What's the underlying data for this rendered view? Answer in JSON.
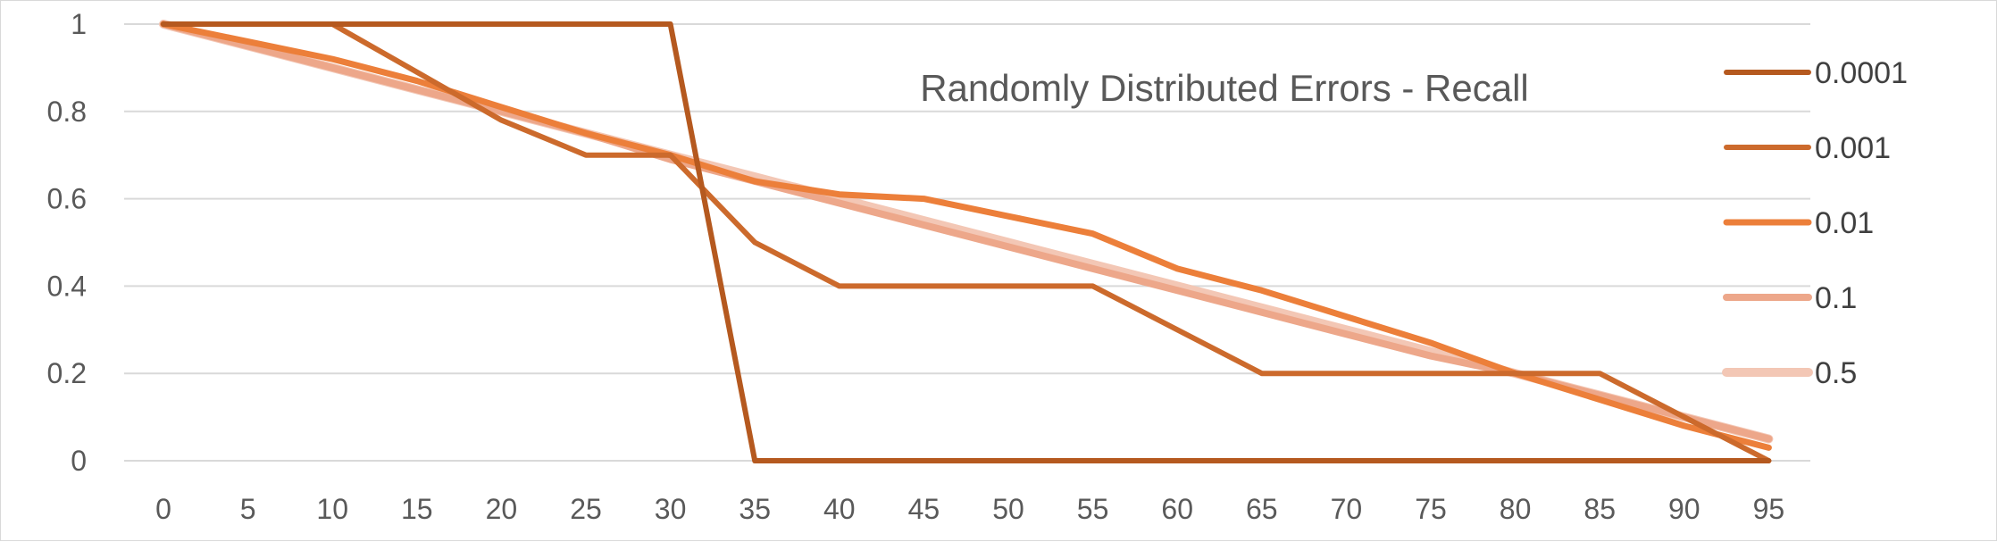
{
  "chart_data": {
    "type": "line",
    "title": "Randomly Distributed Errors - Recall",
    "xlabel": "",
    "ylabel": "",
    "categories": [
      "0",
      "5",
      "10",
      "15",
      "20",
      "25",
      "30",
      "35",
      "40",
      "45",
      "50",
      "55",
      "60",
      "65",
      "70",
      "75",
      "80",
      "85",
      "90",
      "95"
    ],
    "yticks": [
      "0",
      "0.2",
      "0.4",
      "0.6",
      "0.8",
      "1"
    ],
    "ylim": [
      0,
      1
    ],
    "grid": true,
    "legend_position": "right",
    "series": [
      {
        "name": "0.0001",
        "color": "#b5591f",
        "values": [
          1,
          1,
          1,
          1,
          1,
          1,
          1,
          0,
          0,
          0,
          0,
          0,
          0,
          0,
          0,
          0,
          0,
          0,
          0,
          0
        ]
      },
      {
        "name": "0.001",
        "color": "#cc6a2c",
        "values": [
          1,
          1,
          1,
          0.89,
          0.78,
          0.7,
          0.7,
          0.5,
          0.4,
          0.4,
          0.4,
          0.4,
          0.3,
          0.2,
          0.2,
          0.2,
          0.2,
          0.2,
          0.1,
          0
        ]
      },
      {
        "name": "0.01",
        "color": "#ec7f3a",
        "values": [
          1,
          0.96,
          0.92,
          0.87,
          0.81,
          0.75,
          0.7,
          0.64,
          0.61,
          0.6,
          0.56,
          0.52,
          0.44,
          0.39,
          0.33,
          0.27,
          0.2,
          0.14,
          0.08,
          0.03
        ]
      },
      {
        "name": "0.1",
        "color": "#eda78a",
        "values": [
          1,
          0.95,
          0.9,
          0.85,
          0.8,
          0.75,
          0.69,
          0.64,
          0.59,
          0.54,
          0.49,
          0.44,
          0.39,
          0.34,
          0.29,
          0.24,
          0.2,
          0.15,
          0.1,
          0.05
        ]
      },
      {
        "name": "0.5",
        "color": "#f3c7b5",
        "values": [
          1,
          0.95,
          0.9,
          0.85,
          0.8,
          0.75,
          0.7,
          0.65,
          0.6,
          0.55,
          0.5,
          0.45,
          0.4,
          0.35,
          0.3,
          0.25,
          0.2,
          0.15,
          0.1,
          0.05
        ]
      }
    ]
  }
}
